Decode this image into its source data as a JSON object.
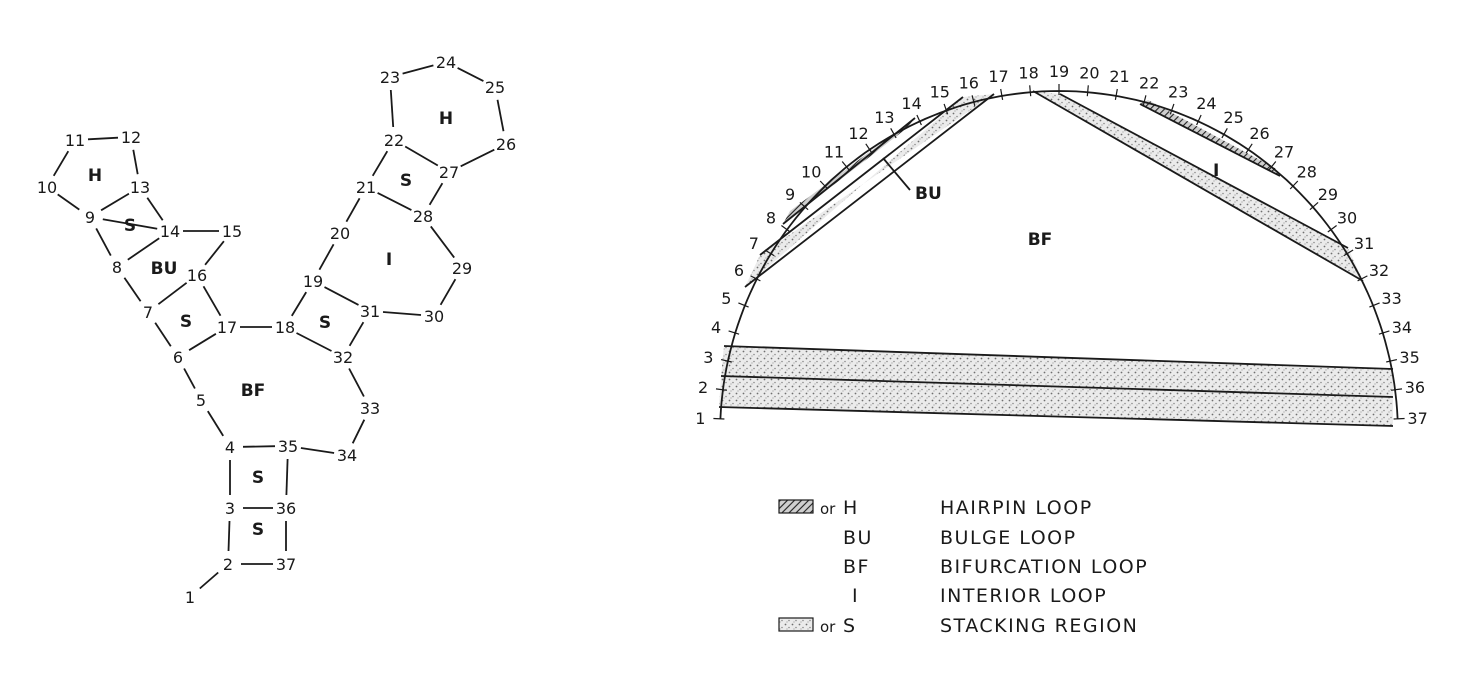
{
  "structure": {
    "nucleotides": [
      "1",
      "2",
      "3",
      "4",
      "5",
      "6",
      "7",
      "8",
      "9",
      "10",
      "11",
      "12",
      "13",
      "14",
      "15",
      "16",
      "17",
      "18",
      "19",
      "20",
      "21",
      "22",
      "23",
      "24",
      "25",
      "26",
      "27",
      "28",
      "29",
      "30",
      "31",
      "32",
      "33",
      "34",
      "35",
      "36",
      "37"
    ],
    "region_labels": {
      "hairpin_left": "H",
      "stack_9_14": "S",
      "bulge": "BU",
      "stack_6_17": "S",
      "bifurcation": "BF",
      "stack_18_32": "S",
      "interior": "I",
      "stack_21_28": "S",
      "hairpin_right": "H",
      "stack_3_36": "S",
      "stack_2_37": "S"
    }
  },
  "circle_plot": {
    "labels": {
      "bulge": "BU",
      "interior": "I",
      "bifurcation": "BF"
    }
  },
  "legend": [
    {
      "symbol": "H",
      "connector": "or",
      "swatch": "hatched",
      "label": "HAIRPIN  LOOP"
    },
    {
      "symbol": "BU",
      "connector": "",
      "swatch": "",
      "label": "BULGE  LOOP"
    },
    {
      "symbol": "BF",
      "connector": "",
      "swatch": "",
      "label": "BIFURCATION  LOOP"
    },
    {
      "symbol": "I",
      "connector": "",
      "swatch": "",
      "label": "INTERIOR  LOOP"
    },
    {
      "symbol": "S",
      "connector": "or",
      "swatch": "stippled",
      "label": "STACKING  REGION"
    }
  ]
}
